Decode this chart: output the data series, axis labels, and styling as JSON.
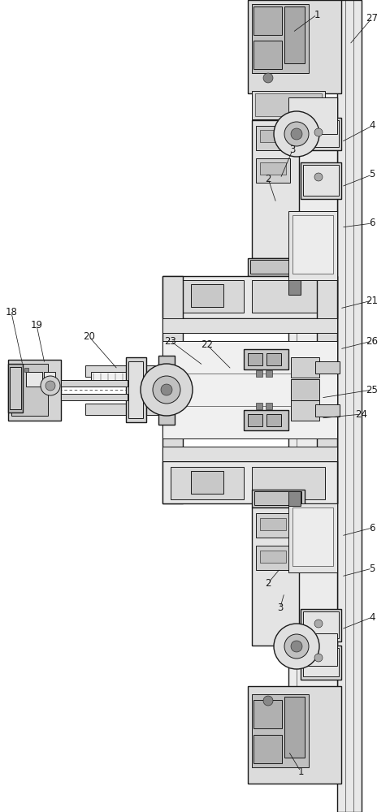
{
  "bg_color": "#ffffff",
  "dc": "#1a1a1a",
  "lc": "#333333",
  "fc_light": "#f0f0f0",
  "fc_med": "#e0e0e0",
  "fc_dark": "#c8c8c8",
  "fc_darker": "#aaaaaa",
  "fc_black": "#222222",
  "fig_width": 4.8,
  "fig_height": 10.0
}
